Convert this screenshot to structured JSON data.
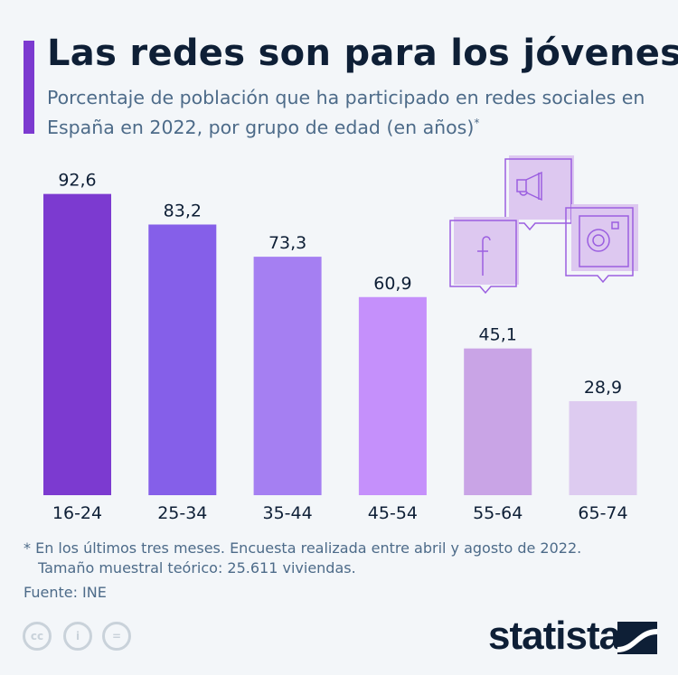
{
  "title": "Las redes son para los jóvenes",
  "subtitle": "Porcentaje de población que ha participado en redes sociales en España en 2022, por grupo de edad (en años)",
  "subtitle_mark": "*",
  "colors": {
    "background": "#f3f6f9",
    "accent": "#7c3ad0",
    "text": "#0e1f36",
    "muted": "#4d6b89"
  },
  "chart_data": {
    "type": "bar",
    "categories": [
      "16-24",
      "25-34",
      "35-44",
      "45-54",
      "55-64",
      "65-74"
    ],
    "values": [
      92.6,
      83.2,
      73.3,
      60.9,
      45.1,
      28.9
    ],
    "value_labels": [
      "92,6",
      "83,2",
      "73,3",
      "60,9",
      "45,1",
      "28,9"
    ],
    "bar_colors": [
      "#7c3ad0",
      "#855fe9",
      "#a57ff2",
      "#c590fb",
      "#c9a4e6",
      "#ddcbf0"
    ],
    "ylim": [
      0,
      100
    ],
    "grid": false
  },
  "decoration_icons": [
    "facebook-icon",
    "megaphone-icon",
    "instagram-icon"
  ],
  "footnote_line1": "* En los últimos tres meses. Encuesta realizada entre abril y agosto de 2022.",
  "footnote_line2": "Tamaño muestral teórico: 25.611 viviendas.",
  "source": "Fuente: INE",
  "license_icons": {
    "cc": "cc",
    "by": "i",
    "nd": "="
  },
  "brand": "statista"
}
